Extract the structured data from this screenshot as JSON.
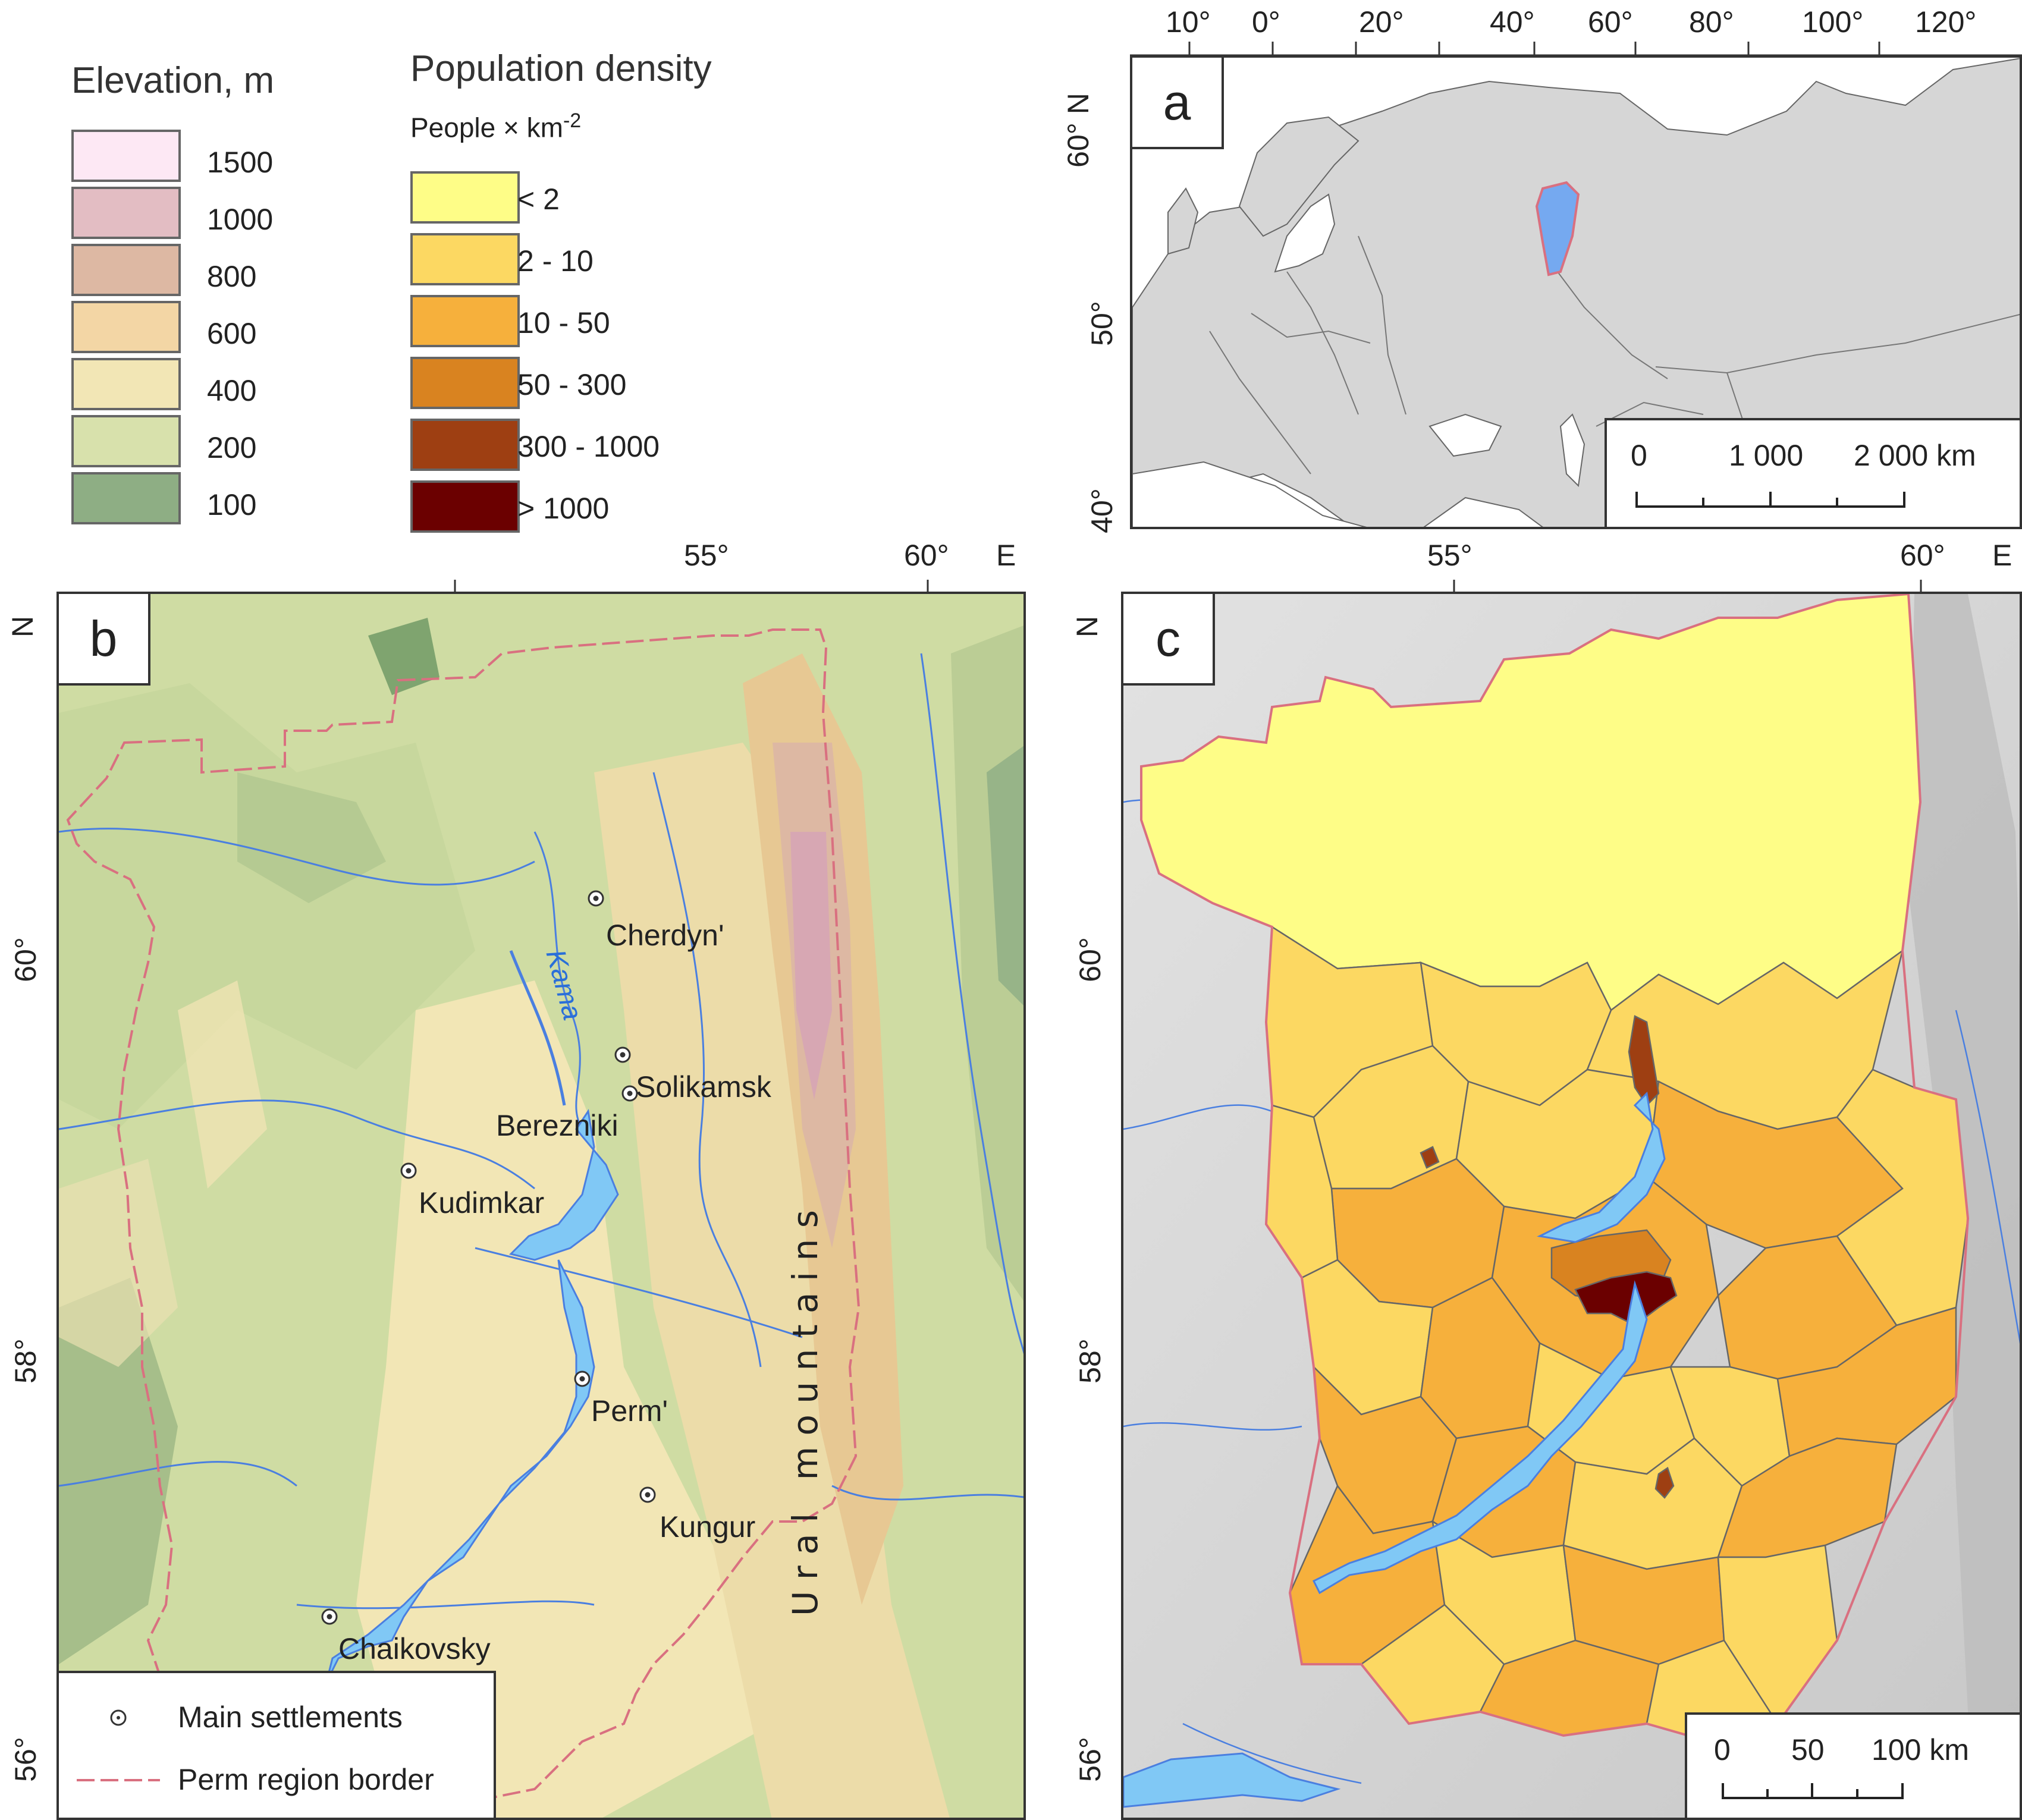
{
  "elevation_legend": {
    "title": "Elevation, m",
    "items": [
      {
        "label": "1500",
        "color": "#fde8f4"
      },
      {
        "label": "1000",
        "color": "#e3bdc3"
      },
      {
        "label": "800",
        "color": "#ddb8a3"
      },
      {
        "label": "600",
        "color": "#f3d6a5"
      },
      {
        "label": "400",
        "color": "#f2e6b5"
      },
      {
        "label": "200",
        "color": "#d8e1ac"
      },
      {
        "label": "100",
        "color": "#8eae84"
      }
    ]
  },
  "density_legend": {
    "title": "Population density",
    "unit": "People × km",
    "unit_exp": "-2",
    "items": [
      {
        "label": "< 2",
        "color": "#fefd87"
      },
      {
        "label": "2 - 10",
        "color": "#fcd862"
      },
      {
        "label": "10 - 50",
        "color": "#f6b03c"
      },
      {
        "label": "50 - 300",
        "color": "#d98320"
      },
      {
        "label": "300 - 1000",
        "color": "#9e3f12"
      },
      {
        "label": "> 1000",
        "color": "#6b0000"
      }
    ]
  },
  "panel_a": {
    "letter": "a",
    "top_ticks": [
      "10°",
      "0°",
      "20°",
      "40°",
      "60°",
      "80°",
      "100°",
      "120°"
    ],
    "left_ticks": [
      "60° N",
      "50°",
      "40°"
    ],
    "scale": {
      "labels": [
        "0",
        "1 000",
        "2 000 km"
      ]
    }
  },
  "panel_b": {
    "letter": "b",
    "top_ticks": [
      "55°",
      "60°",
      "E"
    ],
    "left_ticks": [
      "N",
      "60°",
      "58°",
      "56°"
    ],
    "river_label": "Kama",
    "mountain_label": "U r a l   m o u n t a i n s",
    "cities": [
      {
        "name": "Cherdyn'"
      },
      {
        "name": "Solikamsk"
      },
      {
        "name": "Berezniki"
      },
      {
        "name": "Kudimkar"
      },
      {
        "name": "Perm'"
      },
      {
        "name": "Kungur"
      },
      {
        "name": "Chaikovsky"
      }
    ],
    "legend": {
      "settlements": "Main settlements",
      "border": "Perm region border"
    }
  },
  "panel_c": {
    "letter": "c",
    "top_ticks": [
      "55°",
      "60°",
      "E"
    ],
    "left_ticks": [
      "N",
      "60°",
      "58°",
      "56°"
    ],
    "scale": {
      "labels": [
        "0",
        "50",
        "100 km"
      ]
    }
  },
  "colors": {
    "river": "#4a7fe0",
    "lake": "#80c8f5",
    "border": "#d97080",
    "land_bg": "#d6d6d6"
  }
}
